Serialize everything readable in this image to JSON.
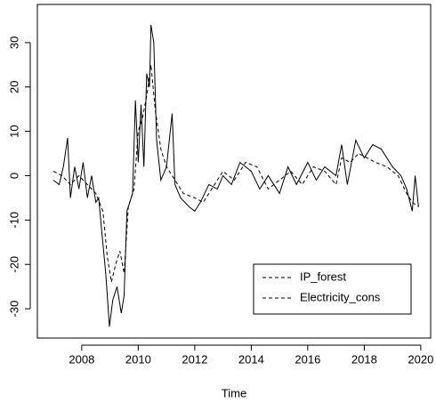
{
  "chart_data": {
    "type": "line",
    "xlabel": "Time",
    "xlim": [
      2006.43,
      2020.35
    ],
    "ylim": [
      -36.6,
      38.6
    ],
    "xticks": [
      2008,
      2010,
      2012,
      2014,
      2016,
      2018,
      2020
    ],
    "yticks": [
      -30,
      -20,
      -10,
      0,
      10,
      20,
      30
    ],
    "legend": "bottomright",
    "series": [
      {
        "name": "IP_forest",
        "color": "#000000",
        "linestyle": "solid",
        "legend_linestyle": "dashed",
        "x": [
          2007.0,
          2007.2,
          2007.35,
          2007.5,
          2007.6,
          2007.75,
          2007.9,
          2008.05,
          2008.2,
          2008.35,
          2008.5,
          2008.6,
          2008.7,
          2008.85,
          2008.98,
          2009.1,
          2009.25,
          2009.4,
          2009.5,
          2009.6,
          2009.8,
          2009.9,
          2010.0,
          2010.1,
          2010.2,
          2010.3,
          2010.4,
          2010.45,
          2010.55,
          2010.65,
          2010.8,
          2011.0,
          2011.2,
          2011.3,
          2011.5,
          2011.8,
          2012.0,
          2012.2,
          2012.5,
          2012.8,
          2013.0,
          2013.3,
          2013.6,
          2014.0,
          2014.3,
          2014.6,
          2015.0,
          2015.3,
          2015.6,
          2016.0,
          2016.3,
          2016.6,
          2017.0,
          2017.2,
          2017.4,
          2017.7,
          2018.0,
          2018.3,
          2018.6,
          2019.0,
          2019.3,
          2019.5,
          2019.7,
          2019.8,
          2019.92
        ],
        "values": [
          -1,
          -2,
          2,
          8.5,
          -5,
          2,
          -3,
          3,
          -5,
          0,
          -6,
          -5,
          -12,
          -22,
          -34,
          -28,
          -25,
          -31,
          -27,
          -8,
          -4,
          17,
          3,
          16,
          2,
          23,
          20,
          34,
          30,
          8,
          -1,
          2,
          14,
          -2,
          -5,
          -7,
          -8,
          -6,
          -2,
          -3,
          0,
          -2,
          3,
          1,
          -3,
          0,
          -4,
          2,
          -2,
          3,
          -1,
          2,
          0,
          7,
          -2,
          8,
          4,
          7,
          6,
          2,
          0,
          -3,
          -8,
          0,
          -7
        ]
      },
      {
        "name": "Electricity_cons",
        "color": "#000000",
        "linestyle": "dashed",
        "legend_linestyle": "dashed",
        "x": [
          2007.0,
          2007.3,
          2007.6,
          2007.9,
          2008.2,
          2008.5,
          2008.75,
          2008.9,
          2009.05,
          2009.2,
          2009.35,
          2009.5,
          2009.65,
          2009.85,
          2010.0,
          2010.15,
          2010.3,
          2010.45,
          2010.6,
          2010.8,
          2011.0,
          2011.3,
          2011.6,
          2012.0,
          2012.3,
          2012.6,
          2013.0,
          2013.4,
          2013.8,
          2014.2,
          2014.6,
          2015.0,
          2015.4,
          2015.8,
          2016.2,
          2016.6,
          2017.0,
          2017.2,
          2017.5,
          2017.8,
          2018.1,
          2018.4,
          2018.8,
          2019.2,
          2019.5,
          2019.7,
          2019.92
        ],
        "values": [
          1,
          0,
          -2,
          0,
          -2,
          -4,
          -8,
          -18,
          -24,
          -20,
          -17,
          -22,
          -7,
          -3,
          10,
          13,
          18,
          25,
          15,
          6,
          2,
          -1,
          -4,
          -5,
          -6,
          -3,
          1,
          -1,
          3,
          2,
          -3,
          -1,
          1,
          -2,
          2,
          1,
          -2,
          4,
          3,
          5,
          4,
          3,
          2,
          0,
          -4,
          -6,
          -7
        ]
      }
    ]
  }
}
